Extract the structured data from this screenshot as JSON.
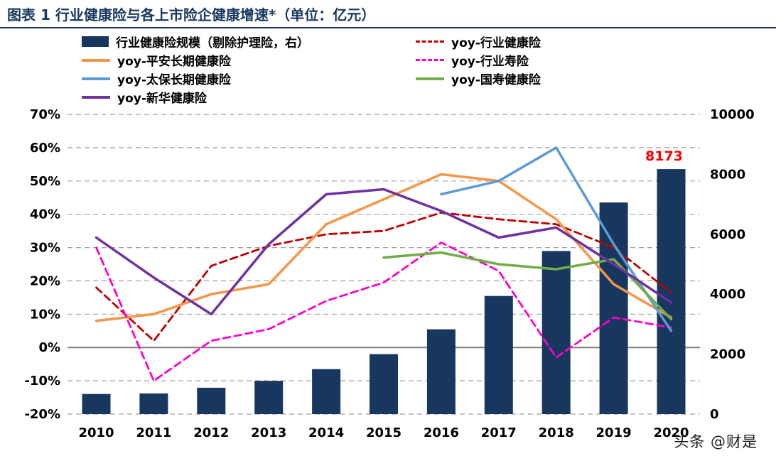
{
  "title": "图表 1 行业健康险与各上市险企健康增速*（单位：亿元）",
  "watermark": "头条 @财是",
  "colors": {
    "title_navy": "#17375E",
    "bar_navy": "#17375E",
    "industry_health_red": "#C00000",
    "pingan_orange": "#F79646",
    "industry_life_magenta": "#FF00CC",
    "taibao_blue": "#5B9BD5",
    "guoshou_green": "#70AD47",
    "xinhua_purple": "#7030A0",
    "annotation_red": "#FF0000",
    "gridline_gray": "#A0A0A0",
    "zero_line_gray": "#7F7F7F"
  },
  "legend": {
    "items": [
      {
        "label": "行业健康险规模（剔除护理险，右）",
        "marker": "bar",
        "color": "#17375E"
      },
      {
        "label": "yoy-行业健康险",
        "marker": "dashed-line",
        "color": "#C00000"
      },
      {
        "label": "yoy-平安长期健康险",
        "marker": "line",
        "color": "#F79646"
      },
      {
        "label": "yoy-行业寿险",
        "marker": "dashed-line",
        "color": "#FF00CC"
      },
      {
        "label": "yoy-太保长期健康险",
        "marker": "line",
        "color": "#5B9BD5"
      },
      {
        "label": "yoy-国寿健康险",
        "marker": "line",
        "color": "#70AD47"
      },
      {
        "label": "yoy-新华健康险",
        "marker": "line",
        "color": "#7030A0"
      }
    ]
  },
  "chart_data": {
    "type": "combo-bar-line",
    "title": "行业健康险与各上市险企健康增速（单位：亿元）",
    "categories": [
      "2010",
      "2011",
      "2012",
      "2013",
      "2014",
      "2015",
      "2016",
      "2017",
      "2018",
      "2019",
      "2020"
    ],
    "left_axis": {
      "min": -20,
      "max": 70,
      "step": 10,
      "format": "percent",
      "tick_labels": [
        "70%",
        "60%",
        "50%",
        "40%",
        "30%",
        "20%",
        "10%",
        "0%",
        "-10%",
        "-20%"
      ]
    },
    "right_axis": {
      "min": 0,
      "max": 10000,
      "step": 2000,
      "tick_labels": [
        "10000",
        "8000",
        "6000",
        "4000",
        "2000",
        "0"
      ]
    },
    "grid": "dashed-horizontal",
    "legend_position": "top",
    "bar_series": {
      "name": "行业健康险规模（剔除护理险，右）",
      "axis": "right",
      "color": "#17375E",
      "values": [
        670,
        690,
        880,
        1110,
        1500,
        2000,
        2830,
        3940,
        5440,
        7060,
        8173
      ]
    },
    "line_series": [
      {
        "name": "yoy-行业健康险",
        "axis": "left",
        "color": "#C00000",
        "dash": "dashed",
        "values": [
          18,
          2,
          24.5,
          30.5,
          34,
          35,
          40.5,
          38.5,
          37,
          30,
          16.5
        ]
      },
      {
        "name": "yoy-平安长期健康险",
        "axis": "left",
        "color": "#F79646",
        "dash": "solid",
        "values": [
          8,
          10,
          16,
          19,
          37,
          44.5,
          52,
          50,
          38.5,
          19,
          9
        ]
      },
      {
        "name": "yoy-行业寿险",
        "axis": "left",
        "color": "#FF00CC",
        "dash": "dashed",
        "values": [
          30,
          -10,
          2,
          5.5,
          14,
          19.5,
          31.5,
          23,
          -3,
          9,
          6
        ]
      },
      {
        "name": "yoy-太保长期健康险",
        "axis": "left",
        "color": "#5B9BD5",
        "dash": "solid",
        "values": [
          null,
          null,
          null,
          null,
          null,
          null,
          46,
          50,
          60,
          31,
          5
        ]
      },
      {
        "name": "yoy-国寿健康险",
        "axis": "left",
        "color": "#70AD47",
        "dash": "solid",
        "values": [
          null,
          null,
          null,
          null,
          null,
          27,
          28.5,
          25,
          23.5,
          26.5,
          8.5
        ]
      },
      {
        "name": "yoy-新华健康险",
        "axis": "left",
        "color": "#7030A0",
        "dash": "solid",
        "values": [
          33,
          21,
          10,
          31,
          46,
          47.5,
          41,
          33,
          36,
          25,
          13.5
        ]
      }
    ],
    "annotation": {
      "text": "8173",
      "category": "2020",
      "color": "#FF0000"
    }
  }
}
